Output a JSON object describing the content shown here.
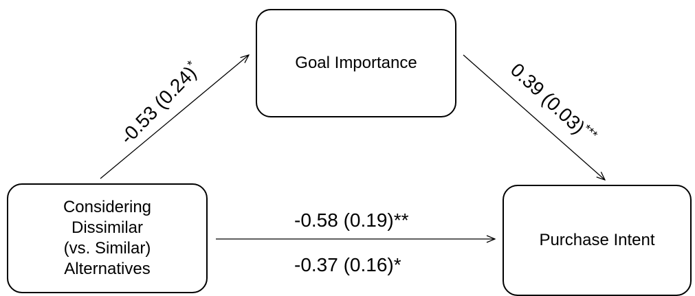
{
  "nodes": {
    "goal_importance": "Goal Importance",
    "purchase_intent": "Purchase Intent",
    "considering_lines": [
      "Considering",
      "Dissimilar",
      "(vs. Similar)",
      "Alternatives"
    ]
  },
  "paths": {
    "a": {
      "coef": "-0.53 (0.24)",
      "sig": "*"
    },
    "b": {
      "coef": "0.39 (0.03)",
      "sig": "***"
    },
    "c_total": {
      "coef": "-0.58 (0.19)",
      "sig": "**"
    },
    "c_direct": {
      "coef": "-0.37 (0.16)",
      "sig": "*"
    }
  }
}
